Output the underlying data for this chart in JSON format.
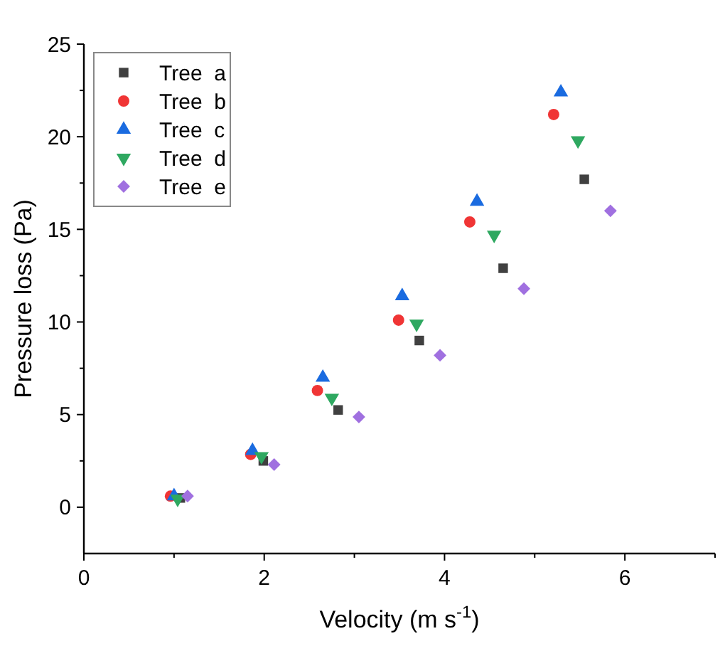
{
  "chart_data": {
    "type": "scatter",
    "xlabel": "Velocity (m s$^{-1}$)",
    "ylabel": "Pressure loss (Pa)",
    "xlim": [
      0,
      7
    ],
    "ylim": [
      -2.5,
      25
    ],
    "xticks": [
      0,
      {
        "value": 1,
        "label": null
      },
      2,
      {
        "value": 3,
        "label": null
      },
      4,
      {
        "value": 5,
        "label": null
      },
      6,
      {
        "value": 7,
        "label": null
      }
    ],
    "yticks": [
      0,
      {
        "value": 2.5,
        "label": null
      },
      5,
      {
        "value": 7.5,
        "label": null
      },
      10,
      {
        "value": 12.5,
        "label": null
      },
      15,
      {
        "value": 17.5,
        "label": null
      },
      20,
      {
        "value": 22.5,
        "label": null
      },
      25
    ],
    "legend": "top left",
    "grid": false,
    "series": [
      {
        "name": "Tree  a",
        "color": "#404040",
        "marker": "square",
        "x": [
          1.07,
          1.99,
          2.82,
          3.72,
          4.65,
          5.55
        ],
        "values": [
          0.5,
          2.5,
          5.25,
          9.0,
          12.9,
          17.7
        ]
      },
      {
        "name": "Tree  b",
        "color": "#f03535",
        "marker": "circle",
        "x": [
          0.96,
          1.85,
          2.59,
          3.49,
          4.28,
          5.21
        ],
        "values": [
          0.6,
          2.85,
          6.3,
          10.1,
          15.4,
          21.2
        ]
      },
      {
        "name": "Tree  c",
        "color": "#1a6be0",
        "marker": "triangle",
        "x": [
          1.0,
          1.87,
          2.65,
          3.53,
          4.36,
          5.29
        ],
        "values": [
          0.6,
          3.05,
          7.0,
          11.4,
          16.5,
          22.4
        ]
      },
      {
        "name": "Tree  d",
        "color": "#2ea860",
        "marker": "triangle-down",
        "x": [
          1.04,
          1.97,
          2.75,
          3.69,
          4.55,
          5.48
        ],
        "values": [
          0.45,
          2.75,
          5.9,
          9.9,
          14.7,
          19.8
        ]
      },
      {
        "name": "Tree  e",
        "color": "#a070e0",
        "marker": "diamond",
        "x": [
          1.15,
          2.11,
          3.05,
          3.95,
          4.88,
          5.84
        ],
        "values": [
          0.6,
          2.3,
          4.87,
          8.2,
          11.8,
          16.0
        ]
      }
    ]
  }
}
